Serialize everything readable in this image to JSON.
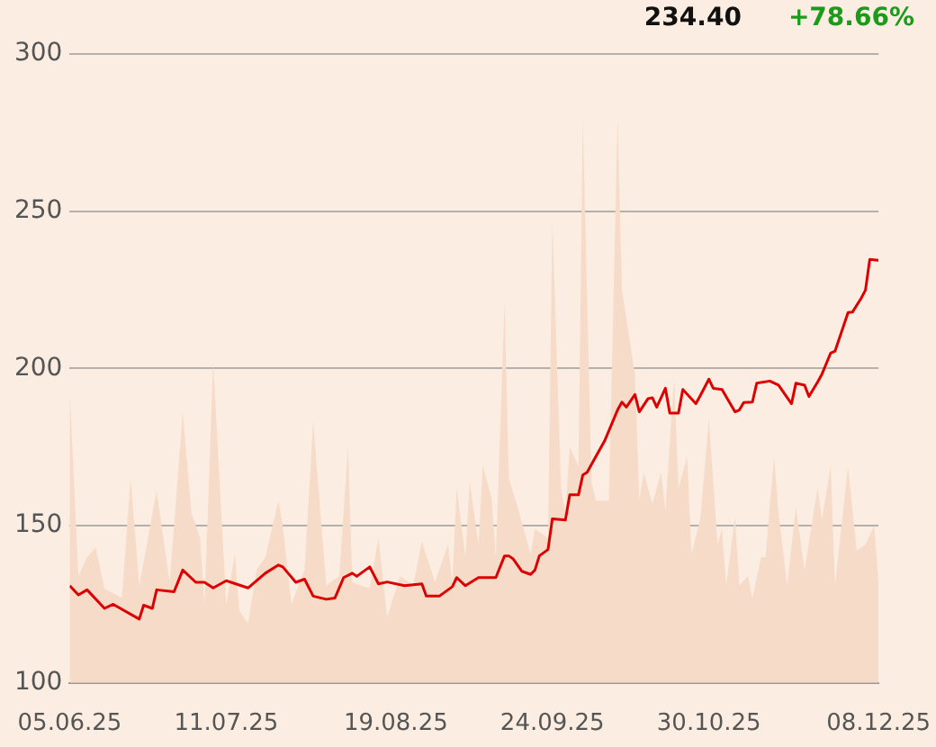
{
  "chart_data": {
    "type": "line",
    "annotations": [
      "234.40",
      "+78.66%"
    ],
    "xlim": [
      "2025-06-05",
      "2025-12-08"
    ],
    "xticks": [
      {
        "value": "2025-06-05",
        "label": "05.06.25"
      },
      {
        "value": "2025-07-11",
        "label": "11.07.25"
      },
      {
        "value": "2025-08-19",
        "label": "19.08.25"
      },
      {
        "value": "2025-09-24",
        "label": "24.09.25"
      },
      {
        "value": "2025-10-30",
        "label": "30.10.25"
      },
      {
        "value": "2025-12-08",
        "label": "08.12.25"
      }
    ],
    "ylim": [
      100,
      300
    ],
    "yticks": [
      100,
      150,
      200,
      250,
      300
    ],
    "grid": "y",
    "legend": false,
    "marker": "none",
    "line_style": "solid",
    "series": [
      {
        "type": "area",
        "color": "#f6dcc8",
        "x": [
          "2025-06-05",
          "2025-06-07",
          "2025-06-09",
          "2025-06-11",
          "2025-06-13",
          "2025-06-17",
          "2025-06-19",
          "2025-06-21",
          "2025-06-25",
          "2025-06-28",
          "2025-07-01",
          "2025-07-03",
          "2025-07-05",
          "2025-07-06",
          "2025-07-08",
          "2025-07-11",
          "2025-07-13",
          "2025-07-14",
          "2025-07-16",
          "2025-07-18",
          "2025-07-20",
          "2025-07-23",
          "2025-07-24",
          "2025-07-26",
          "2025-07-29",
          "2025-07-31",
          "2025-08-03",
          "2025-08-06",
          "2025-08-08",
          "2025-08-09",
          "2025-08-13",
          "2025-08-15",
          "2025-08-17",
          "2025-08-20",
          "2025-08-23",
          "2025-08-25",
          "2025-08-28",
          "2025-08-31",
          "2025-09-01",
          "2025-09-02",
          "2025-09-04",
          "2025-09-05",
          "2025-09-07",
          "2025-09-08",
          "2025-09-10",
          "2025-09-11",
          "2025-09-13",
          "2025-09-14",
          "2025-09-16",
          "2025-09-19",
          "2025-09-20",
          "2025-09-23",
          "2025-09-24",
          "2025-09-26",
          "2025-09-27",
          "2025-09-28",
          "2025-09-30",
          "2025-10-01",
          "2025-10-03",
          "2025-10-04",
          "2025-10-07",
          "2025-10-09",
          "2025-10-10",
          "2025-10-13",
          "2025-10-14",
          "2025-10-15",
          "2025-10-17",
          "2025-10-19",
          "2025-10-20",
          "2025-10-22",
          "2025-10-23",
          "2025-10-25",
          "2025-10-26",
          "2025-10-28",
          "2025-10-30",
          "2025-11-01",
          "2025-11-02",
          "2025-11-03",
          "2025-11-05",
          "2025-11-06",
          "2025-11-08",
          "2025-11-09",
          "2025-11-11",
          "2025-11-12",
          "2025-11-14",
          "2025-11-15",
          "2025-11-17",
          "2025-11-19",
          "2025-11-21",
          "2025-11-24",
          "2025-11-25",
          "2025-11-27",
          "2025-11-28",
          "2025-12-01",
          "2025-12-03",
          "2025-12-05",
          "2025-12-07",
          "2025-12-08"
        ],
        "values": [
          193,
          134,
          140,
          143,
          130,
          127,
          165,
          131,
          161,
          132,
          186,
          154,
          146,
          125,
          202,
          125,
          141,
          123,
          119,
          136,
          140,
          158,
          150,
          125,
          136,
          183,
          131,
          134,
          175,
          132,
          130,
          146,
          121,
          134,
          131,
          145,
          132,
          144,
          132,
          162,
          140,
          164,
          144,
          169,
          159,
          140,
          221,
          165,
          156,
          141,
          149,
          146,
          247,
          162,
          154,
          175,
          169,
          280,
          164,
          158,
          158,
          280,
          225,
          198,
          158,
          167,
          157,
          167,
          155,
          197,
          162,
          172,
          141,
          152,
          184,
          144,
          149,
          131,
          153,
          131,
          134,
          127,
          140,
          140,
          172,
          154,
          131,
          156,
          136,
          162,
          152,
          169,
          131,
          169,
          142,
          144,
          150,
          132
        ]
      },
      {
        "color": "#dd0000",
        "x": [
          "2025-06-05",
          "2025-06-07",
          "2025-06-09",
          "2025-06-13",
          "2025-06-15",
          "2025-06-21",
          "2025-06-22",
          "2025-06-24",
          "2025-06-25",
          "2025-06-29",
          "2025-07-01",
          "2025-07-04",
          "2025-07-06",
          "2025-07-08",
          "2025-07-11",
          "2025-07-16",
          "2025-07-20",
          "2025-07-23",
          "2025-07-24",
          "2025-07-27",
          "2025-07-29",
          "2025-07-31",
          "2025-08-03",
          "2025-08-05",
          "2025-08-07",
          "2025-08-09",
          "2025-08-10",
          "2025-08-13",
          "2025-08-15",
          "2025-08-17",
          "2025-08-21",
          "2025-08-25",
          "2025-08-26",
          "2025-08-29",
          "2025-09-01",
          "2025-09-02",
          "2025-09-04",
          "2025-09-07",
          "2025-09-11",
          "2025-09-13",
          "2025-09-14",
          "2025-09-15",
          "2025-09-17",
          "2025-09-19",
          "2025-09-20",
          "2025-09-21",
          "2025-09-23",
          "2025-09-24",
          "2025-09-27",
          "2025-09-28",
          "2025-09-30",
          "2025-10-01",
          "2025-10-02",
          "2025-10-04",
          "2025-10-06",
          "2025-10-09",
          "2025-10-10",
          "2025-10-11",
          "2025-10-13",
          "2025-10-14",
          "2025-10-16",
          "2025-10-17",
          "2025-10-18",
          "2025-10-20",
          "2025-10-21",
          "2025-10-23",
          "2025-10-24",
          "2025-10-27",
          "2025-10-28",
          "2025-10-30",
          "2025-10-31",
          "2025-11-02",
          "2025-11-05",
          "2025-11-06",
          "2025-11-07",
          "2025-11-09",
          "2025-11-10",
          "2025-11-13",
          "2025-11-15",
          "2025-11-18",
          "2025-11-19",
          "2025-11-21",
          "2025-11-22",
          "2025-11-24",
          "2025-11-25",
          "2025-11-27",
          "2025-11-28",
          "2025-12-01",
          "2025-12-02",
          "2025-12-04",
          "2025-12-05",
          "2025-12-06",
          "2025-12-08"
        ],
        "values": [
          130.9,
          128,
          129.6,
          123.7,
          125,
          120.3,
          124.7,
          123.7,
          129.6,
          129,
          135.9,
          132,
          132,
          130.2,
          132.5,
          130.2,
          134.9,
          137.5,
          136.9,
          132,
          133,
          127.6,
          126.6,
          127,
          133.5,
          134.9,
          133.9,
          136.9,
          131.5,
          132.1,
          130.9,
          131.5,
          127.6,
          127.6,
          130.6,
          133.5,
          130.9,
          133.5,
          133.5,
          140.4,
          140.4,
          139.4,
          135.5,
          134.5,
          135.9,
          140.4,
          142.4,
          152.2,
          151.8,
          159.8,
          159.8,
          166.1,
          167,
          172,
          176.9,
          186.8,
          189.3,
          187.7,
          191.7,
          186.2,
          190.4,
          190.7,
          187.7,
          193.7,
          185.8,
          185.8,
          193.3,
          188.8,
          191.3,
          196.6,
          193.7,
          193.3,
          186.2,
          186.8,
          189.2,
          189.3,
          195.3,
          196,
          194.7,
          188.8,
          195.3,
          194.7,
          191.1,
          195.7,
          198.2,
          204.9,
          205.5,
          217.8,
          217.9,
          222.3,
          224.9,
          234.7,
          234.4
        ]
      }
    ]
  }
}
